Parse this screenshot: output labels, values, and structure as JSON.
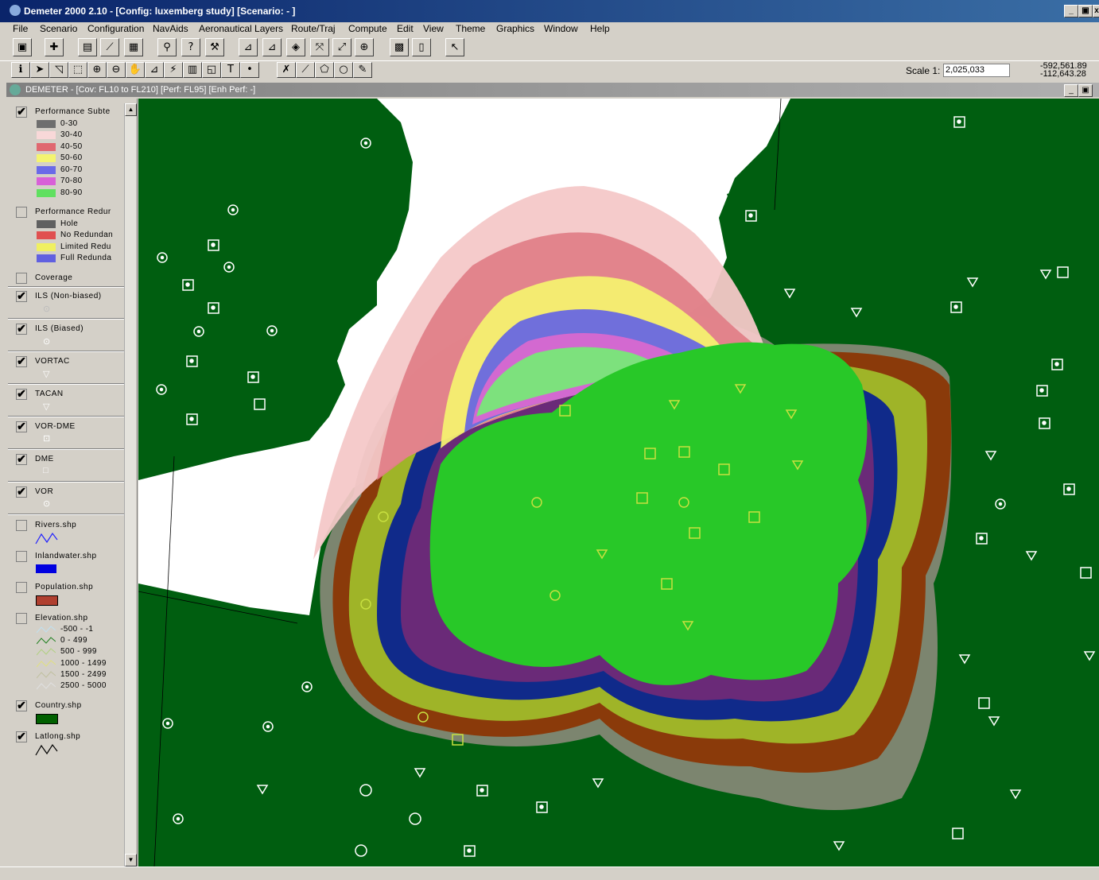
{
  "window": {
    "title": "Demeter 2000 2.10 - [Config: luxemberg study] [Scenario: - ]",
    "controls": [
      "_",
      "▣",
      "x"
    ]
  },
  "menu": [
    "File",
    "Scenario",
    "Configuration",
    "NavAids",
    "Aeronautical Layers",
    "Route/Traj",
    "Compute",
    "Edit",
    "View",
    "Theme",
    "Graphics",
    "Window",
    "Help"
  ],
  "toolbar": {
    "scale_label": "Scale 1:",
    "scale_value": "2,025,033",
    "coord_x": "-592,561.89",
    "coord_y": "-112,643.28"
  },
  "map_window": {
    "title": "DEMETER - [Cov: FL10 to FL210] [Perf: FL95] [Enh Perf: -]"
  },
  "legend": {
    "performance_subtype": {
      "title": "Performance Subte",
      "checked": true,
      "items": [
        {
          "label": "0-30",
          "color": "#6e6e6e"
        },
        {
          "label": "30-40",
          "color": "#f8d8d8"
        },
        {
          "label": "40-50",
          "color": "#e06870"
        },
        {
          "label": "50-60",
          "color": "#f4f470"
        },
        {
          "label": "60-70",
          "color": "#6a6ae8"
        },
        {
          "label": "70-80",
          "color": "#d860d8"
        },
        {
          "label": "80-90",
          "color": "#60e060"
        }
      ]
    },
    "performance_redundancy": {
      "title": "Performance Redur",
      "checked": false,
      "items": [
        {
          "label": "Hole",
          "color": "#606060"
        },
        {
          "label": "No Redundan",
          "color": "#e05050"
        },
        {
          "label": "Limited Redu",
          "color": "#f0f060"
        },
        {
          "label": "Full Redunda",
          "color": "#6060e0"
        }
      ]
    },
    "coverage": {
      "title": "Coverage",
      "checked": false
    },
    "navaids": [
      {
        "title": "ILS (Non-biased)",
        "checked": true,
        "symbol": "ils-icon"
      },
      {
        "title": "ILS (Biased)",
        "checked": true,
        "symbol": "ils-biased-icon"
      },
      {
        "title": "VORTAC",
        "checked": true,
        "symbol": "vortac-icon"
      },
      {
        "title": "TACAN",
        "checked": true,
        "symbol": "tacan-icon"
      },
      {
        "title": "VOR-DME",
        "checked": true,
        "symbol": "vor-dme-icon"
      },
      {
        "title": "DME",
        "checked": true,
        "symbol": "dme-icon"
      },
      {
        "title": "VOR",
        "checked": true,
        "symbol": "vor-icon"
      }
    ],
    "rivers": {
      "title": "Rivers.shp",
      "checked": false,
      "color": "#2020ff"
    },
    "inlandwater": {
      "title": "Inlandwater.shp",
      "checked": false,
      "color": "#0000e0"
    },
    "population": {
      "title": "Population.shp",
      "checked": false,
      "color": "#b04030"
    },
    "elevation": {
      "title": "Elevation.shp",
      "checked": false,
      "items": [
        {
          "label": "-500 - -1",
          "color": "#c0e0f0"
        },
        {
          "label": "0 - 499",
          "color": "#208020"
        },
        {
          "label": "500 - 999",
          "color": "#b0d080"
        },
        {
          "label": "1000 - 1499",
          "color": "#e0e080"
        },
        {
          "label": "1500 - 2499",
          "color": "#c0c0a0"
        },
        {
          "label": "2500 - 5000",
          "color": "#e0e0e0"
        }
      ]
    },
    "country": {
      "title": "Country.shp",
      "checked": true,
      "color": "#006000"
    },
    "latlong": {
      "title": "Latlong.shp",
      "checked": true,
      "color": "#000000"
    }
  },
  "map_colors": {
    "land": "#005e10",
    "sea": "#ffffff",
    "ring_brown": "#8a3a0a",
    "ring_olive": "#9fb428",
    "ring_navy": "#102a8a",
    "ring_purple": "#6a2a78",
    "core_green": "#28c828",
    "light_pink": "#f4c8c8",
    "pink": "#e08088",
    "yellow": "#f4f070",
    "blue": "#6868e0",
    "magenta": "#d868d0",
    "pale_green": "#78e878",
    "gray": "#7a8a6a"
  }
}
